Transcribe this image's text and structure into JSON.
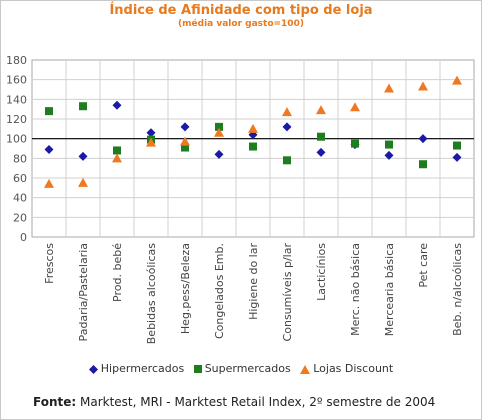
{
  "chart_data": {
    "type": "scatter",
    "title": "Índice de Afinidade com tipo de loja",
    "subtitle": "(média valor gasto=100)",
    "categories": [
      "Frescos",
      "Padaria/Pastelaria",
      "Prod. bebé",
      "Bebidas alcoólicas",
      "Heg.pess/Beleza",
      "Congelados Emb.",
      "Higiene do lar",
      "Consumíveis p/lar",
      "Lacticínios",
      "Merc. não básica",
      "Mercearia básica",
      "Pet care",
      "Beb. n/alcoólicas"
    ],
    "ylim": [
      0,
      180
    ],
    "yticks": [
      0,
      20,
      40,
      60,
      80,
      100,
      120,
      140,
      160,
      180
    ],
    "reference_line": 100,
    "grid": true,
    "legend_position": "bottom",
    "series": [
      {
        "name": "Hipermercados",
        "marker": "diamond",
        "color": "#1a1aa6",
        "values": [
          89,
          82,
          134,
          106,
          112,
          84,
          104,
          112,
          86,
          94,
          83,
          100,
          81
        ]
      },
      {
        "name": "Supermercados",
        "marker": "square",
        "color": "#1e7d1e",
        "values": [
          128,
          133,
          88,
          99,
          91,
          112,
          92,
          78,
          102,
          95,
          94,
          74,
          93
        ]
      },
      {
        "name": "Lojas Discount",
        "marker": "triangle",
        "color": "#f07820",
        "values": [
          54,
          55,
          80,
          96,
          97,
          106,
          110,
          127,
          129,
          132,
          151,
          153,
          159
        ]
      }
    ]
  },
  "source": {
    "label": "Fonte:",
    "text": " Marktest, MRI - Marktest Retail Index, 2º semestre de 2004"
  }
}
